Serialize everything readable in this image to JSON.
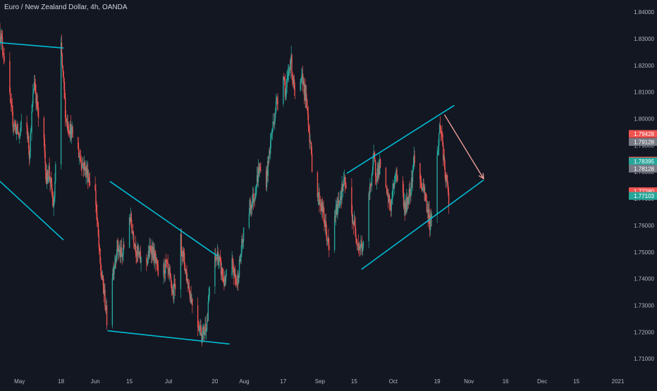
{
  "chart_data": {
    "type": "candlestick",
    "title": "Euro / New Zealand Dollar, 4h, OANDA",
    "y_axis": {
      "ticks": [
        1.71,
        1.72,
        1.73,
        1.74,
        1.75,
        1.76,
        1.77,
        1.78,
        1.79,
        1.8,
        1.81,
        1.82,
        1.83,
        1.84
      ],
      "tick_labels": [
        "1.71000",
        "1.72000",
        "1.73000",
        "1.74000",
        "1.75000",
        "1.76000",
        "1.77000",
        "1.78000",
        "1.79000",
        "1.80000",
        "1.81000",
        "1.82000",
        "1.83000",
        "1.84000"
      ],
      "range": [
        1.7045,
        1.8445
      ],
      "position": "right"
    },
    "x_axis": {
      "range": [
        "2020-04-23",
        "2021-01-02"
      ],
      "ticks": [
        {
          "date": "2020-05-01",
          "label": "May"
        },
        {
          "date": "2020-05-18",
          "label": "18"
        },
        {
          "date": "2020-06-01",
          "label": "Jun"
        },
        {
          "date": "2020-06-15",
          "label": "15"
        },
        {
          "date": "2020-07-01",
          "label": "Jul"
        },
        {
          "date": "2020-07-20",
          "label": "20"
        },
        {
          "date": "2020-08-01",
          "label": "Aug"
        },
        {
          "date": "2020-08-17",
          "label": "17"
        },
        {
          "date": "2020-09-01",
          "label": "Sep"
        },
        {
          "date": "2020-09-15",
          "label": "15"
        },
        {
          "date": "2020-10-01",
          "label": "Oct"
        },
        {
          "date": "2020-10-19",
          "label": "19"
        },
        {
          "date": "2020-11-01",
          "label": "Nov"
        },
        {
          "date": "2020-11-16",
          "label": "16"
        },
        {
          "date": "2020-12-01",
          "label": "Dec"
        },
        {
          "date": "2020-12-15",
          "label": "15"
        },
        {
          "date": "2021-01-01",
          "label": "2021"
        }
      ]
    },
    "grid": false,
    "price_path": [
      [
        "2020-04-23",
        1.833
      ],
      [
        "2020-04-25",
        1.822
      ],
      [
        "2020-04-28",
        1.8
      ],
      [
        "2020-05-01",
        1.793
      ],
      [
        "2020-05-03",
        1.806
      ],
      [
        "2020-05-05",
        1.787
      ],
      [
        "2020-05-07",
        1.815
      ],
      [
        "2020-05-09",
        1.798
      ],
      [
        "2020-05-11",
        1.79
      ],
      [
        "2020-05-12",
        1.777
      ],
      [
        "2020-05-13",
        1.781
      ],
      [
        "2020-05-15",
        1.766
      ],
      [
        "2020-05-17",
        1.807
      ],
      [
        "2020-05-18",
        1.826
      ],
      [
        "2020-05-20",
        1.8
      ],
      [
        "2020-05-23",
        1.793
      ],
      [
        "2020-05-26",
        1.785
      ],
      [
        "2020-05-29",
        1.779
      ],
      [
        "2020-06-01",
        1.772
      ],
      [
        "2020-06-03",
        1.745
      ],
      [
        "2020-06-05",
        1.732
      ],
      [
        "2020-06-06",
        1.722
      ],
      [
        "2020-06-08",
        1.742
      ],
      [
        "2020-06-10",
        1.752
      ],
      [
        "2020-06-12",
        1.748
      ],
      [
        "2020-06-15",
        1.764
      ],
      [
        "2020-06-18",
        1.75
      ],
      [
        "2020-06-21",
        1.744
      ],
      [
        "2020-06-24",
        1.752
      ],
      [
        "2020-06-27",
        1.741
      ],
      [
        "2020-06-30",
        1.745
      ],
      [
        "2020-07-03",
        1.734
      ],
      [
        "2020-07-06",
        1.754
      ],
      [
        "2020-07-09",
        1.738
      ],
      [
        "2020-07-12",
        1.726
      ],
      [
        "2020-07-15",
        1.719
      ],
      [
        "2020-07-17",
        1.725
      ],
      [
        "2020-07-18",
        1.741
      ],
      [
        "2020-07-21",
        1.749
      ],
      [
        "2020-07-24",
        1.738
      ],
      [
        "2020-07-27",
        1.745
      ],
      [
        "2020-07-29",
        1.738
      ],
      [
        "2020-07-31",
        1.752
      ],
      [
        "2020-08-02",
        1.764
      ],
      [
        "2020-08-05",
        1.771
      ],
      [
        "2020-08-07",
        1.781
      ],
      [
        "2020-08-10",
        1.777
      ],
      [
        "2020-08-12",
        1.793
      ],
      [
        "2020-08-14",
        1.805
      ],
      [
        "2020-08-17",
        1.818
      ],
      [
        "2020-08-18",
        1.809
      ],
      [
        "2020-08-20",
        1.823
      ],
      [
        "2020-08-22",
        1.806
      ],
      [
        "2020-08-25",
        1.815
      ],
      [
        "2020-08-27",
        1.802
      ],
      [
        "2020-08-29",
        1.78
      ],
      [
        "2020-08-31",
        1.772
      ],
      [
        "2020-09-02",
        1.766
      ],
      [
        "2020-09-04",
        1.755
      ],
      [
        "2020-09-05",
        1.748
      ],
      [
        "2020-09-07",
        1.763
      ],
      [
        "2020-09-09",
        1.77
      ],
      [
        "2020-09-11",
        1.776
      ],
      [
        "2020-09-13",
        1.768
      ],
      [
        "2020-09-15",
        1.76
      ],
      [
        "2020-09-17",
        1.752
      ],
      [
        "2020-09-19",
        1.752
      ],
      [
        "2020-09-21",
        1.77
      ],
      [
        "2020-09-23",
        1.785
      ],
      [
        "2020-09-24",
        1.779
      ],
      [
        "2020-09-26",
        1.783
      ],
      [
        "2020-09-28",
        1.772
      ],
      [
        "2020-09-30",
        1.767
      ],
      [
        "2020-10-02",
        1.78
      ],
      [
        "2020-10-04",
        1.775
      ],
      [
        "2020-10-06",
        1.766
      ],
      [
        "2020-10-08",
        1.774
      ],
      [
        "2020-10-10",
        1.788
      ],
      [
        "2020-10-12",
        1.776
      ],
      [
        "2020-10-14",
        1.771
      ],
      [
        "2020-10-16",
        1.761
      ],
      [
        "2020-10-18",
        1.773
      ],
      [
        "2020-10-20",
        1.797
      ],
      [
        "2020-10-21",
        1.794
      ],
      [
        "2020-10-22",
        1.779
      ],
      [
        "2020-10-23",
        1.776
      ],
      [
        "2020-10-24",
        1.766
      ],
      [
        "2020-10-25",
        1.773
      ]
    ],
    "drawings": {
      "trendlines": [
        {
          "from": [
            "2020-04-23",
            1.8285
          ],
          "to": [
            "2020-05-19",
            1.8265
          ]
        },
        {
          "from": [
            "2020-04-23",
            1.7765
          ],
          "to": [
            "2020-05-19",
            1.7545
          ]
        },
        {
          "from": [
            "2020-06-07",
            1.7765
          ],
          "to": [
            "2020-07-21",
            1.7485
          ]
        },
        {
          "from": [
            "2020-06-06",
            1.7205
          ],
          "to": [
            "2020-07-26",
            1.7155
          ]
        },
        {
          "from": [
            "2020-09-18",
            1.7435
          ],
          "to": [
            "2020-11-07",
            1.777
          ]
        },
        {
          "from": [
            "2020-09-12",
            1.7795
          ],
          "to": [
            "2020-10-26",
            1.805
          ]
        }
      ],
      "projection_arrow": {
        "from": [
          "2020-10-22",
          1.8015
        ],
        "to": [
          "2020-11-07",
          1.7775
        ]
      }
    },
    "price_labels": [
      {
        "text": "1.79428",
        "value": 1.79428,
        "color": "#ef5350"
      },
      {
        "text": "1.79128",
        "value": 1.79128,
        "color": "#787b86"
      },
      {
        "text": "1.78428",
        "value": 1.78428,
        "color": "#ef5350"
      },
      {
        "text": "1.78395",
        "value": 1.78395,
        "color": "#26a69a"
      },
      {
        "text": "1.78128",
        "value": 1.78128,
        "color": "#787b86"
      },
      {
        "text": "1.77280",
        "value": 1.7728,
        "color": "#ef5350"
      },
      {
        "text": "1.77103",
        "value": 1.77103,
        "color": "#26a69a"
      }
    ],
    "colors": {
      "up": "#26a69a",
      "down": "#ef5350",
      "trendline": "#00bcd4",
      "arrow": "#f7a399",
      "background": "#131722",
      "axis_text": "#b2b5be"
    }
  }
}
